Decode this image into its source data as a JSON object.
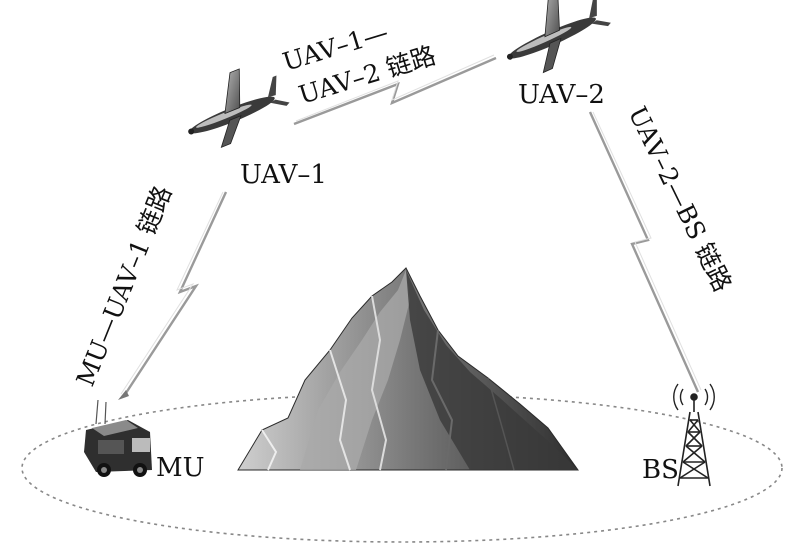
{
  "nodes": {
    "uav1": {
      "label": "UAV–1"
    },
    "uav2": {
      "label": "UAV–2"
    },
    "mu": {
      "label": "MU"
    },
    "bs": {
      "label": "BS"
    }
  },
  "links": {
    "uav1_uav2": {
      "line1": "UAV–1—",
      "line2": "UAV–2 链路"
    },
    "mu_uav1": {
      "label": "MU—UAV–1 链路"
    },
    "uav2_bs": {
      "label": "UAV–2—BS 链路"
    }
  },
  "icons": {
    "uav": "uav-icon",
    "vehicle": "vehicle-icon",
    "tower": "tower-icon",
    "mountain": "mountain-icon"
  }
}
